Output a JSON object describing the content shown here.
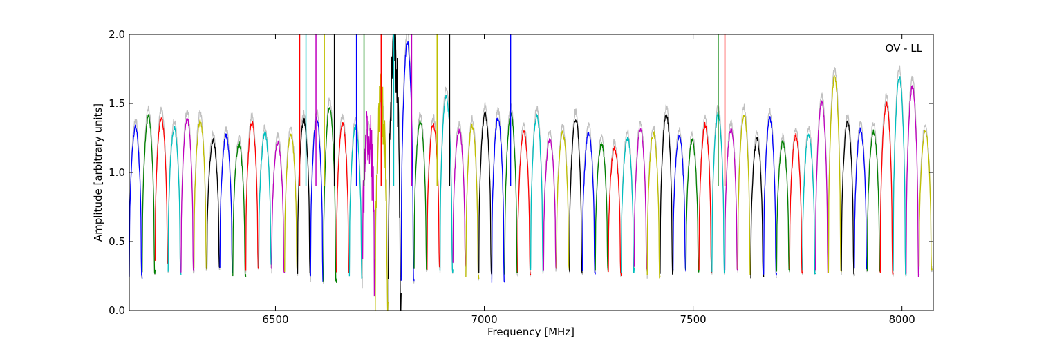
{
  "chart_data": {
    "type": "line",
    "title": "",
    "xlabel": "Frequency [MHz]",
    "ylabel": "Amplitude [arbitrary units]",
    "annotation": "OV - LL",
    "xlim": [
      6150,
      8075
    ],
    "ylim": [
      0.0,
      2.0
    ],
    "x_ticks": [
      6500,
      7000,
      7500,
      8000
    ],
    "x_tick_labels": [
      "6500",
      "7000",
      "7500",
      "8000"
    ],
    "y_ticks": [
      0.0,
      0.5,
      1.0,
      1.5,
      2.0
    ],
    "y_tick_labels": [
      "0.0",
      "0.5",
      "1.0",
      "1.5",
      "2.0"
    ],
    "grid": false,
    "colors": [
      "#0000ff",
      "#008000",
      "#ff0000",
      "#00bfbf",
      "#bf00bf",
      "#bfbf00",
      "#000000"
    ],
    "background_trace_color": "#c0c0c0",
    "channel_width_mhz": 31,
    "channel_starts_mhz": [
      6150,
      6181,
      6212,
      6243,
      6274,
      6305,
      6336,
      6367,
      6398,
      6429,
      6460,
      6491,
      6522,
      6553,
      6584,
      6615,
      6646,
      6677,
      6708,
      6739,
      6770,
      6801,
      6832,
      6863,
      6894,
      6925,
      6956,
      6987,
      7018,
      7049,
      7080,
      7111,
      7142,
      7173,
      7204,
      7235,
      7266,
      7297,
      7328,
      7359,
      7390,
      7421,
      7452,
      7483,
      7514,
      7545,
      7576,
      7607,
      7638,
      7669,
      7700,
      7731,
      7762,
      7793,
      7824,
      7855,
      7886,
      7917,
      7948,
      7979,
      8010,
      8041
    ],
    "channel_peaks": [
      1.33,
      1.41,
      1.4,
      1.32,
      1.39,
      1.38,
      1.23,
      1.27,
      1.21,
      1.36,
      1.28,
      1.22,
      1.27,
      1.38,
      1.39,
      1.47,
      1.36,
      1.33,
      1.3,
      1.5,
      1.9,
      1.95,
      1.37,
      1.35,
      1.55,
      1.3,
      1.34,
      1.43,
      1.4,
      1.42,
      1.3,
      1.41,
      1.24,
      1.29,
      1.39,
      1.29,
      1.21,
      1.18,
      1.25,
      1.31,
      1.28,
      1.42,
      1.26,
      1.23,
      1.35,
      1.42,
      1.31,
      1.42,
      1.24,
      1.39,
      1.22,
      1.27,
      1.27,
      1.5,
      1.69,
      1.36,
      1.31,
      1.3,
      1.5,
      1.69,
      1.62,
      1.3
    ],
    "channel_floors": [
      0.25,
      0.28,
      0.36,
      0.28,
      0.29,
      0.3,
      0.31,
      0.29,
      0.26,
      0.3,
      0.32,
      0.29,
      0.3,
      0.27,
      0.23,
      0.21,
      0.28,
      0.25,
      0.16,
      0.0,
      0.0,
      0.22,
      0.3,
      0.31,
      0.29,
      0.33,
      0.24,
      0.27,
      0.22,
      0.28,
      0.27,
      0.29,
      0.3,
      0.31,
      0.29,
      0.28,
      0.3,
      0.27,
      0.29,
      0.3,
      0.25,
      0.28,
      0.3,
      0.29,
      0.29,
      0.27,
      0.3,
      0.28,
      0.25,
      0.26,
      0.3,
      0.28,
      0.28,
      0.29,
      0.29,
      0.27,
      0.29,
      0.3,
      0.28,
      0.27,
      0.26,
      0.3
    ],
    "spike_markers_mhz": [
      6558,
      6573,
      6597,
      6617,
      6641,
      6694,
      6712,
      6753,
      6783,
      6826,
      6887,
      6917,
      7063,
      7560,
      7576
    ]
  }
}
